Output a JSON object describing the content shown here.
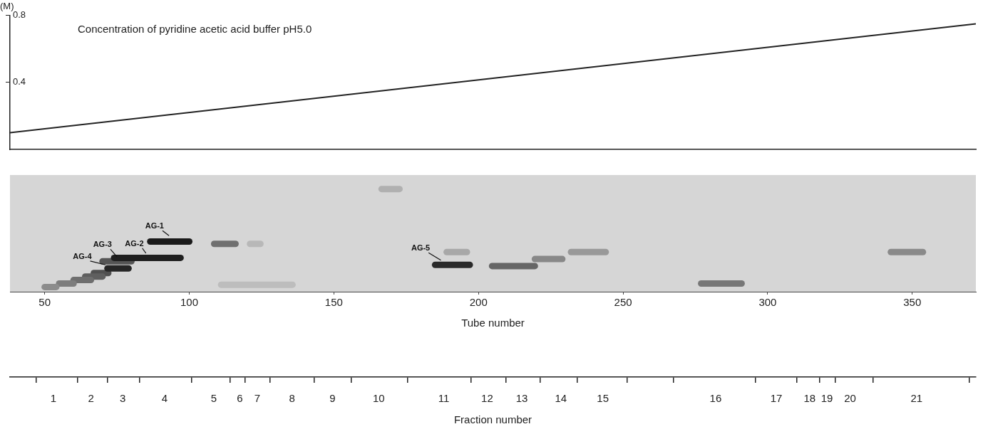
{
  "chart_data": [
    {
      "type": "line",
      "title": "(M)",
      "annotation": "Concentration of pyridine acetic acid buffer pH5.0",
      "x": [
        38,
        372
      ],
      "values": [
        0.1,
        0.75
      ],
      "xlim": [
        38,
        372
      ],
      "ylim": [
        0,
        0.8
      ],
      "yticks": [
        0.4,
        0.8
      ],
      "tick_labels": "y",
      "color": "#222222"
    },
    {
      "type": "gel",
      "xlabel": "Tube number",
      "xlim": [
        38,
        372
      ],
      "xticks": [
        50,
        100,
        150,
        200,
        250,
        300,
        350
      ],
      "ylim": [
        0,
        1
      ],
      "tick_labels": "x",
      "spots": [
        {
          "x": [
            86.5,
            100
          ],
          "y": 0.43,
          "color": "#1a1a1a"
        },
        {
          "x": [
            74,
            97
          ],
          "y": 0.29,
          "color": "#1f1f1f"
        },
        {
          "x": [
            70,
            80
          ],
          "y": 0.26,
          "color": "#555555"
        },
        {
          "x": [
            71.7,
            79
          ],
          "y": 0.2,
          "color": "#262626"
        },
        {
          "x": [
            50,
            54
          ],
          "y": 0.04,
          "color": "#8c8c8c"
        },
        {
          "x": [
            55,
            60
          ],
          "y": 0.07,
          "color": "#7d7d7d"
        },
        {
          "x": [
            60,
            66
          ],
          "y": 0.1,
          "color": "#6e6e6e"
        },
        {
          "x": [
            64,
            70
          ],
          "y": 0.13,
          "color": "#5f5f5f"
        },
        {
          "x": [
            67,
            72
          ],
          "y": 0.16,
          "color": "#505050"
        },
        {
          "x": [
            108.6,
            116
          ],
          "y": 0.41,
          "color": "#707070"
        },
        {
          "x": [
            121,
            124.6
          ],
          "y": 0.41,
          "color": "#b8b8b8"
        },
        {
          "x": [
            111,
            135.7
          ],
          "y": 0.06,
          "color": "#bdbdbd"
        },
        {
          "x": [
            166.5,
            172.7
          ],
          "y": 0.88,
          "color": "#b0b0b0"
        },
        {
          "x": [
            185,
            197
          ],
          "y": 0.23,
          "color": "#2a2a2a"
        },
        {
          "x": [
            189,
            196
          ],
          "y": 0.34,
          "color": "#a8a8a8"
        },
        {
          "x": [
            204.7,
            219.5
          ],
          "y": 0.22,
          "color": "#666666"
        },
        {
          "x": [
            219.5,
            229
          ],
          "y": 0.28,
          "color": "#888888"
        },
        {
          "x": [
            232,
            244
          ],
          "y": 0.34,
          "color": "#999999"
        },
        {
          "x": [
            277,
            291
          ],
          "y": 0.07,
          "color": "#777777"
        },
        {
          "x": [
            342.6,
            353.7
          ],
          "y": 0.34,
          "color": "#8a8a8a"
        }
      ],
      "annotations": [
        {
          "text": "AG-1",
          "x": 88,
          "y": 0.56,
          "target": [
            93,
            0.48
          ]
        },
        {
          "text": "AG-2",
          "x": 81,
          "y": 0.41,
          "target": [
            85,
            0.33
          ]
        },
        {
          "text": "AG-3",
          "x": 70,
          "y": 0.4,
          "target": [
            75,
            0.3
          ]
        },
        {
          "text": "AG-4",
          "x": 63,
          "y": 0.3,
          "target": [
            71,
            0.23
          ]
        },
        {
          "text": "AG-5",
          "x": 180,
          "y": 0.37,
          "target": [
            187,
            0.27
          ]
        }
      ]
    },
    {
      "type": "axis",
      "xlabel": "Fraction number",
      "xlim": [
        38,
        372
      ],
      "bounds": [
        47,
        61.3,
        71.7,
        82.8,
        100.7,
        114,
        119.2,
        127.8,
        143.1,
        155.9,
        175.6,
        197.3,
        209.6,
        221.4,
        234.2,
        251.5,
        267.5,
        295.8,
        310.1,
        318,
        323.4,
        336.5,
        369.8
      ],
      "categories": [
        "1",
        "2",
        "3",
        "4",
        "5",
        "6",
        "7",
        "8",
        "9",
        "10",
        "11",
        "12",
        "13",
        "14",
        "15",
        "16",
        "17",
        "18",
        "19",
        "20",
        "21"
      ],
      "x": [
        53,
        66,
        77,
        91.5,
        108.5,
        117.5,
        123.5,
        135.5,
        149.5,
        165.5,
        188,
        203,
        215,
        228.5,
        243,
        282,
        303,
        314.5,
        320.5,
        328.5,
        351.5
      ]
    }
  ]
}
